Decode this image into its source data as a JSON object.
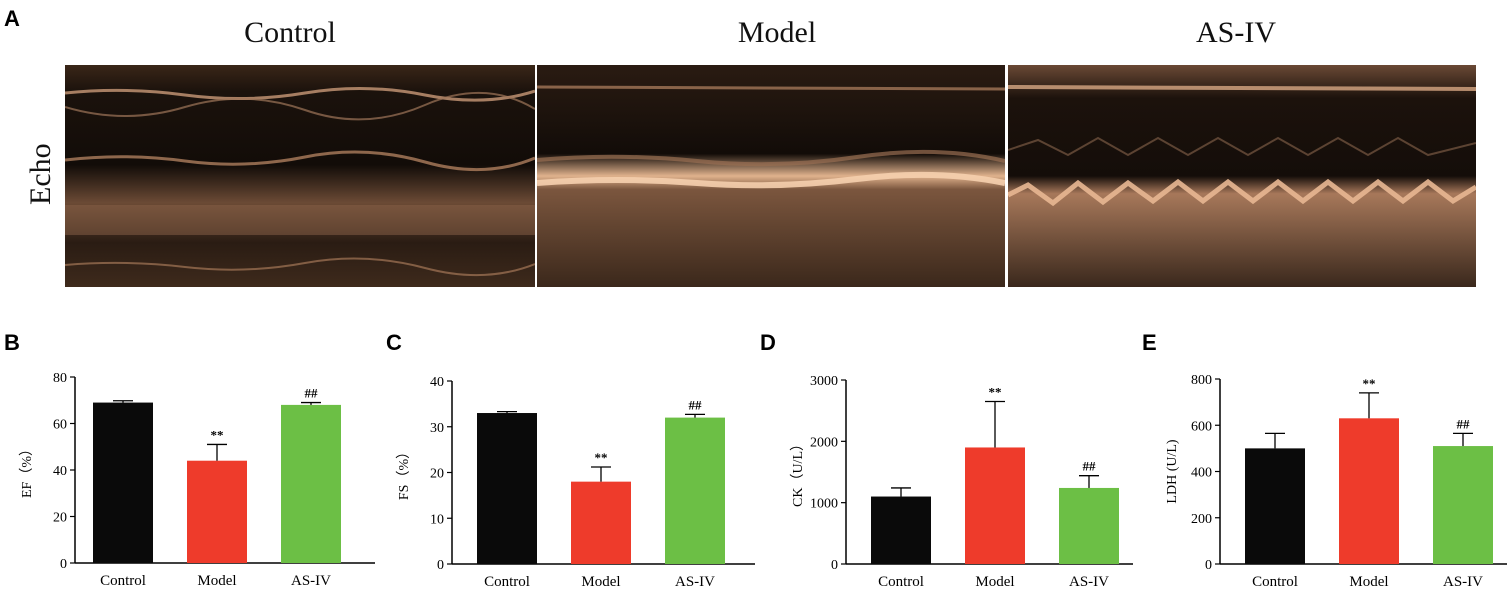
{
  "panel_a": {
    "letter": "A",
    "row_label": "Echo",
    "columns": [
      "Control",
      "Model",
      "AS-IV"
    ]
  },
  "chart_data": [
    {
      "panel": "B",
      "type": "bar",
      "categories": [
        "Control",
        "Model",
        "AS-IV"
      ],
      "values": [
        69,
        44,
        68
      ],
      "errors": [
        0.8,
        7,
        1
      ],
      "annotations": [
        "",
        "**",
        "##"
      ],
      "ylabel": "EF（%）",
      "ylim": [
        0,
        80
      ],
      "yticks": [
        0,
        20,
        40,
        60,
        80
      ]
    },
    {
      "panel": "C",
      "type": "bar",
      "categories": [
        "Control",
        "Model",
        "AS-IV"
      ],
      "values": [
        33,
        18,
        32
      ],
      "errors": [
        0.3,
        3.2,
        0.7
      ],
      "annotations": [
        "",
        "**",
        "##"
      ],
      "ylabel": "FS（%）",
      "ylim": [
        0,
        40
      ],
      "yticks": [
        0,
        10,
        20,
        30,
        40
      ]
    },
    {
      "panel": "D",
      "type": "bar",
      "categories": [
        "Control",
        "Model",
        "AS-IV"
      ],
      "values": [
        1100,
        1900,
        1240
      ],
      "errors": [
        140,
        750,
        200
      ],
      "annotations": [
        "",
        "**",
        "##"
      ],
      "ylabel": "CK（U/L）",
      "ylim": [
        0,
        3000
      ],
      "yticks": [
        0,
        1000,
        2000,
        3000
      ]
    },
    {
      "panel": "E",
      "type": "bar",
      "categories": [
        "Control",
        "Model",
        "AS-IV"
      ],
      "values": [
        500,
        630,
        510
      ],
      "errors": [
        65,
        110,
        55
      ],
      "annotations": [
        "",
        "**",
        "##"
      ],
      "ylabel": "LDH (U/L)",
      "ylim": [
        0,
        800
      ],
      "yticks": [
        0,
        200,
        400,
        600,
        800
      ]
    }
  ],
  "colors": {
    "control": "#0a0a0a",
    "model": "#ee3b2b",
    "as_iv": "#6cbf45",
    "echo_bg": "#1a120c",
    "echo_bright": "#d9a27a"
  }
}
